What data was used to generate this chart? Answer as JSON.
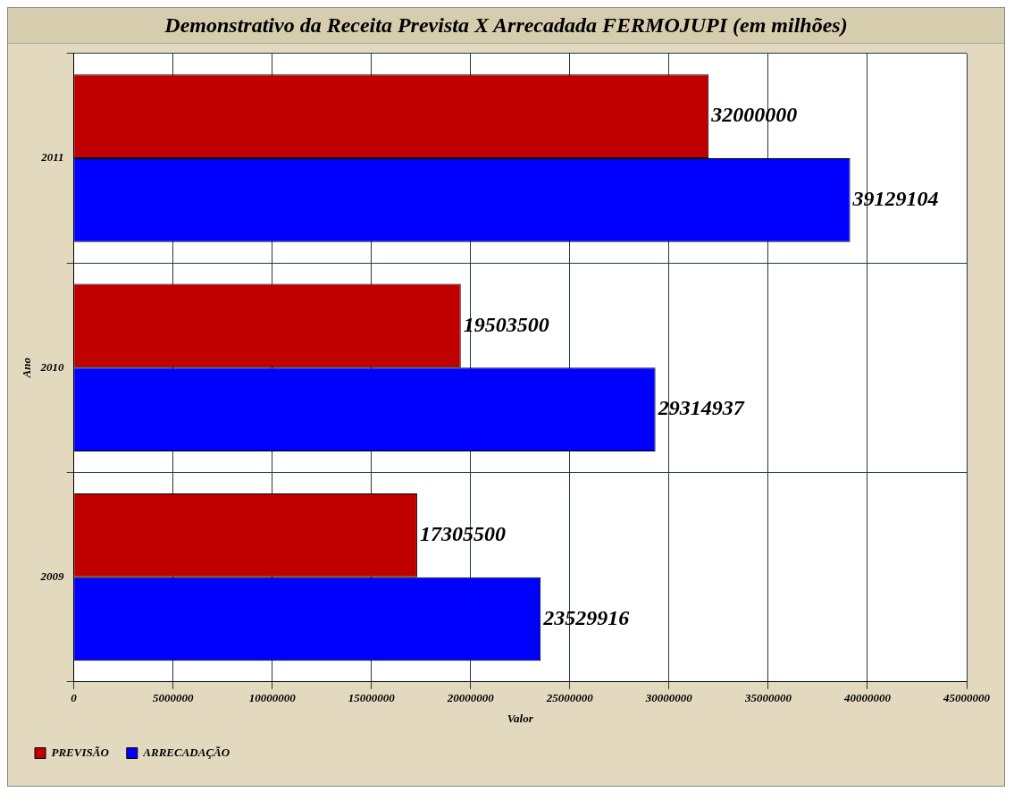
{
  "chart_data": {
    "type": "bar",
    "orientation": "horizontal",
    "title": "Demonstrativo da Receita Prevista X Arrecadada FERMOJUPI (em milhões)",
    "xlabel": "Valor",
    "ylabel": "Ano",
    "categories": [
      "2011",
      "2010",
      "2009"
    ],
    "series": [
      {
        "name": "PREVISÃO",
        "color": "#c00000",
        "values": [
          32000000,
          19503500,
          17305500
        ]
      },
      {
        "name": "ARRECADAÇÃO",
        "color": "#0000ff",
        "values": [
          39129104,
          29314937,
          23529916
        ]
      }
    ],
    "xlim": [
      0,
      45000000
    ],
    "xticks": [
      0,
      5000000,
      10000000,
      15000000,
      20000000,
      25000000,
      30000000,
      35000000,
      40000000,
      45000000
    ],
    "grid": true,
    "legend": "bottom left",
    "data_labels": true
  }
}
